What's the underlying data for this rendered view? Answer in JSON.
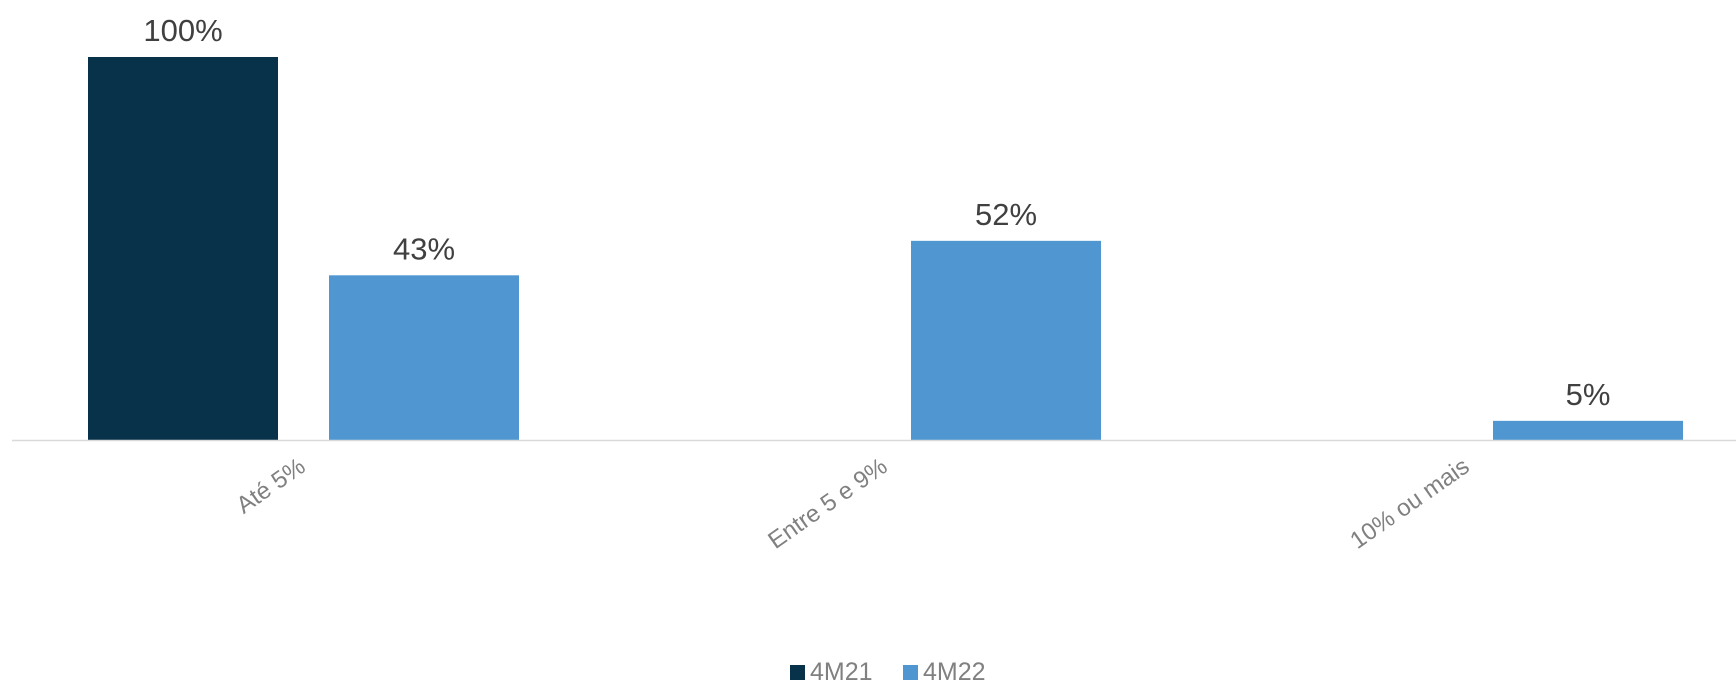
{
  "chart_data": {
    "type": "bar",
    "categories": [
      "Até 5%",
      "Entre 5 e 9%",
      "10% ou mais"
    ],
    "series": [
      {
        "name": "4M21",
        "values": [
          100,
          null,
          null
        ],
        "labels": [
          "100%",
          "",
          ""
        ],
        "color": "#08324A"
      },
      {
        "name": "4M22",
        "values": [
          43,
          52,
          5
        ],
        "labels": [
          "43%",
          "52%",
          "5%"
        ],
        "color": "#5097D2"
      }
    ],
    "ylim": [
      0,
      100
    ],
    "grid": false,
    "legend_position": "bottom",
    "axis_color": "#D9D9D9"
  }
}
